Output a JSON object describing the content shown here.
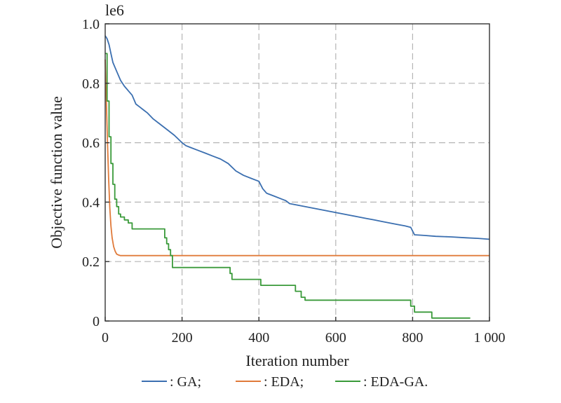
{
  "chart_data": {
    "type": "line",
    "xlabel": "Iteration number",
    "ylabel": "Objective function value",
    "y_multiplier": "le6",
    "xlim": [
      0,
      1000
    ],
    "ylim": [
      0,
      1.0
    ],
    "x_ticks": [
      0,
      200,
      400,
      600,
      800,
      1000
    ],
    "x_tick_labels": [
      "0",
      "200",
      "400",
      "600",
      "800",
      "1 000"
    ],
    "y_ticks": [
      0,
      0.2,
      0.4,
      0.6,
      0.8,
      1.0
    ],
    "y_tick_labels": [
      "0",
      "0.2",
      "0.4",
      "0.6",
      "0.8",
      "1.0"
    ],
    "grid": true,
    "legend_position": "bottom",
    "series": [
      {
        "name": ": GA;",
        "color": "#3b6fb0",
        "step": false,
        "points": [
          [
            0,
            0.96
          ],
          [
            5,
            0.95
          ],
          [
            10,
            0.93
          ],
          [
            15,
            0.9
          ],
          [
            20,
            0.87
          ],
          [
            30,
            0.84
          ],
          [
            40,
            0.81
          ],
          [
            50,
            0.79
          ],
          [
            60,
            0.775
          ],
          [
            70,
            0.76
          ],
          [
            80,
            0.73
          ],
          [
            90,
            0.72
          ],
          [
            100,
            0.71
          ],
          [
            110,
            0.7
          ],
          [
            125,
            0.68
          ],
          [
            140,
            0.665
          ],
          [
            160,
            0.645
          ],
          [
            180,
            0.625
          ],
          [
            200,
            0.6
          ],
          [
            210,
            0.59
          ],
          [
            220,
            0.585
          ],
          [
            240,
            0.575
          ],
          [
            260,
            0.565
          ],
          [
            280,
            0.555
          ],
          [
            300,
            0.545
          ],
          [
            320,
            0.53
          ],
          [
            340,
            0.505
          ],
          [
            360,
            0.49
          ],
          [
            380,
            0.48
          ],
          [
            400,
            0.47
          ],
          [
            410,
            0.445
          ],
          [
            420,
            0.43
          ],
          [
            440,
            0.42
          ],
          [
            460,
            0.41
          ],
          [
            470,
            0.405
          ],
          [
            480,
            0.395
          ],
          [
            500,
            0.39
          ],
          [
            520,
            0.385
          ],
          [
            540,
            0.38
          ],
          [
            560,
            0.375
          ],
          [
            580,
            0.37
          ],
          [
            600,
            0.365
          ],
          [
            620,
            0.36
          ],
          [
            640,
            0.355
          ],
          [
            660,
            0.35
          ],
          [
            680,
            0.345
          ],
          [
            700,
            0.34
          ],
          [
            720,
            0.335
          ],
          [
            740,
            0.33
          ],
          [
            760,
            0.325
          ],
          [
            780,
            0.32
          ],
          [
            795,
            0.315
          ],
          [
            805,
            0.29
          ],
          [
            830,
            0.288
          ],
          [
            860,
            0.285
          ],
          [
            900,
            0.283
          ],
          [
            940,
            0.28
          ],
          [
            970,
            0.278
          ],
          [
            1000,
            0.275
          ]
        ]
      },
      {
        "name": ": EDA;",
        "color": "#e07a3a",
        "step": false,
        "points": [
          [
            0,
            0.88
          ],
          [
            3,
            0.74
          ],
          [
            6,
            0.6
          ],
          [
            9,
            0.48
          ],
          [
            12,
            0.38
          ],
          [
            15,
            0.32
          ],
          [
            18,
            0.28
          ],
          [
            22,
            0.25
          ],
          [
            26,
            0.235
          ],
          [
            30,
            0.225
          ],
          [
            35,
            0.222
          ],
          [
            40,
            0.22
          ],
          [
            1000,
            0.22
          ]
        ]
      },
      {
        "name": ": EDA-GA.",
        "color": "#3a9a3a",
        "step": true,
        "points": [
          [
            0,
            0.9
          ],
          [
            5,
            0.74
          ],
          [
            10,
            0.62
          ],
          [
            15,
            0.53
          ],
          [
            20,
            0.46
          ],
          [
            25,
            0.41
          ],
          [
            30,
            0.385
          ],
          [
            35,
            0.36
          ],
          [
            40,
            0.35
          ],
          [
            50,
            0.34
          ],
          [
            60,
            0.33
          ],
          [
            70,
            0.31
          ],
          [
            150,
            0.31
          ],
          [
            155,
            0.28
          ],
          [
            160,
            0.26
          ],
          [
            165,
            0.24
          ],
          [
            170,
            0.22
          ],
          [
            175,
            0.18
          ],
          [
            320,
            0.18
          ],
          [
            325,
            0.16
          ],
          [
            330,
            0.14
          ],
          [
            400,
            0.14
          ],
          [
            405,
            0.12
          ],
          [
            490,
            0.12
          ],
          [
            495,
            0.1
          ],
          [
            510,
            0.08
          ],
          [
            520,
            0.07
          ],
          [
            790,
            0.07
          ],
          [
            795,
            0.05
          ],
          [
            805,
            0.03
          ],
          [
            840,
            0.03
          ],
          [
            850,
            0.01
          ],
          [
            950,
            0.01
          ]
        ]
      }
    ]
  }
}
